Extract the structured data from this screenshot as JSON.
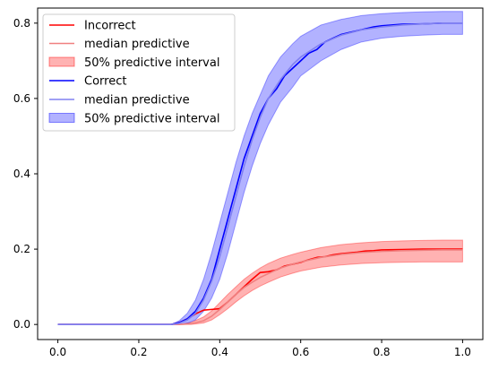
{
  "chart_data": {
    "type": "line",
    "xlim": [
      -0.05,
      1.05
    ],
    "ylim": [
      -0.04,
      0.84
    ],
    "x_ticks": [
      0.0,
      0.2,
      0.4,
      0.6,
      0.8,
      1.0
    ],
    "x_tick_labels": [
      "0.0",
      "0.2",
      "0.4",
      "0.6",
      "0.8",
      "1.0"
    ],
    "y_ticks": [
      0.0,
      0.2,
      0.4,
      0.6,
      0.8
    ],
    "y_tick_labels": [
      "0.0",
      "0.2",
      "0.4",
      "0.6",
      "0.8"
    ],
    "grid": false,
    "legend_position": "top-left",
    "series": [
      {
        "name": "Incorrect",
        "kind": "line",
        "color": "#ff0000",
        "x": [
          0.0,
          0.1,
          0.2,
          0.28,
          0.3,
          0.32,
          0.34,
          0.36,
          0.38,
          0.4,
          0.42,
          0.44,
          0.46,
          0.48,
          0.5,
          0.52,
          0.54,
          0.56,
          0.58,
          0.6,
          0.62,
          0.64,
          0.66,
          0.68,
          0.7,
          0.72,
          0.74,
          0.76,
          0.78,
          0.8,
          0.85,
          0.9,
          0.95,
          1.0
        ],
        "y": [
          0.0,
          0.0,
          0.0,
          0.0,
          0.005,
          0.015,
          0.028,
          0.038,
          0.04,
          0.042,
          0.06,
          0.08,
          0.1,
          0.12,
          0.138,
          0.14,
          0.145,
          0.155,
          0.16,
          0.165,
          0.172,
          0.178,
          0.18,
          0.185,
          0.188,
          0.19,
          0.192,
          0.195,
          0.196,
          0.198,
          0.199,
          0.2,
          0.2,
          0.2
        ]
      },
      {
        "name": "median predictive",
        "kind": "line",
        "color": "#f08080",
        "x": [
          0.0,
          0.1,
          0.2,
          0.3,
          0.33,
          0.36,
          0.38,
          0.4,
          0.42,
          0.44,
          0.46,
          0.48,
          0.5,
          0.52,
          0.55,
          0.58,
          0.6,
          0.65,
          0.7,
          0.75,
          0.8,
          0.85,
          0.9,
          0.95,
          1.0
        ],
        "y": [
          0.0,
          0.0,
          0.0,
          0.0,
          0.002,
          0.01,
          0.022,
          0.04,
          0.06,
          0.08,
          0.098,
          0.112,
          0.125,
          0.135,
          0.15,
          0.16,
          0.166,
          0.178,
          0.186,
          0.191,
          0.194,
          0.196,
          0.197,
          0.198,
          0.198
        ]
      },
      {
        "name": "50% predictive interval",
        "kind": "band",
        "color": "#ff0000",
        "x": [
          0.0,
          0.1,
          0.2,
          0.3,
          0.33,
          0.36,
          0.38,
          0.4,
          0.42,
          0.44,
          0.46,
          0.48,
          0.5,
          0.52,
          0.55,
          0.58,
          0.6,
          0.65,
          0.7,
          0.75,
          0.8,
          0.85,
          0.9,
          0.95,
          1.0
        ],
        "lower": [
          0.0,
          0.0,
          0.0,
          0.0,
          0.0,
          0.004,
          0.012,
          0.026,
          0.042,
          0.06,
          0.076,
          0.09,
          0.102,
          0.112,
          0.126,
          0.136,
          0.142,
          0.152,
          0.158,
          0.162,
          0.164,
          0.165,
          0.166,
          0.166,
          0.166
        ],
        "upper": [
          0.0,
          0.0,
          0.0,
          0.0,
          0.006,
          0.02,
          0.036,
          0.058,
          0.08,
          0.1,
          0.12,
          0.136,
          0.15,
          0.162,
          0.176,
          0.186,
          0.192,
          0.204,
          0.212,
          0.217,
          0.22,
          0.222,
          0.223,
          0.224,
          0.224
        ]
      },
      {
        "name": "Correct",
        "kind": "line",
        "color": "#0000ff",
        "x": [
          0.0,
          0.1,
          0.2,
          0.28,
          0.3,
          0.32,
          0.34,
          0.36,
          0.38,
          0.4,
          0.42,
          0.44,
          0.46,
          0.48,
          0.5,
          0.52,
          0.54,
          0.56,
          0.58,
          0.6,
          0.62,
          0.64,
          0.66,
          0.68,
          0.7,
          0.72,
          0.74,
          0.76,
          0.78,
          0.8,
          0.85,
          0.9,
          0.95,
          1.0
        ],
        "y": [
          0.0,
          0.0,
          0.0,
          0.0,
          0.005,
          0.015,
          0.035,
          0.07,
          0.12,
          0.2,
          0.28,
          0.36,
          0.44,
          0.5,
          0.56,
          0.6,
          0.625,
          0.66,
          0.68,
          0.7,
          0.72,
          0.73,
          0.75,
          0.76,
          0.77,
          0.775,
          0.78,
          0.785,
          0.79,
          0.793,
          0.797,
          0.798,
          0.8,
          0.8
        ]
      },
      {
        "name": "median predictive",
        "kind": "line",
        "color": "#8080f0",
        "x": [
          0.0,
          0.1,
          0.2,
          0.28,
          0.3,
          0.32,
          0.34,
          0.36,
          0.38,
          0.4,
          0.42,
          0.44,
          0.46,
          0.48,
          0.5,
          0.52,
          0.55,
          0.58,
          0.6,
          0.65,
          0.7,
          0.75,
          0.8,
          0.85,
          0.9,
          0.95,
          1.0
        ],
        "y": [
          0.0,
          0.0,
          0.0,
          0.0,
          0.003,
          0.012,
          0.03,
          0.065,
          0.115,
          0.18,
          0.26,
          0.34,
          0.42,
          0.49,
          0.55,
          0.6,
          0.65,
          0.69,
          0.71,
          0.745,
          0.768,
          0.782,
          0.79,
          0.795,
          0.798,
          0.8,
          0.8
        ]
      },
      {
        "name": "50% predictive interval",
        "kind": "band",
        "color": "#0000ff",
        "x": [
          0.0,
          0.1,
          0.2,
          0.28,
          0.3,
          0.32,
          0.34,
          0.36,
          0.38,
          0.4,
          0.42,
          0.44,
          0.46,
          0.48,
          0.5,
          0.52,
          0.55,
          0.58,
          0.6,
          0.65,
          0.7,
          0.75,
          0.8,
          0.85,
          0.9,
          0.95,
          1.0
        ],
        "lower": [
          0.0,
          0.0,
          0.0,
          0.0,
          0.0,
          0.003,
          0.012,
          0.035,
          0.07,
          0.12,
          0.19,
          0.27,
          0.35,
          0.42,
          0.48,
          0.53,
          0.59,
          0.63,
          0.66,
          0.7,
          0.73,
          0.75,
          0.76,
          0.765,
          0.768,
          0.77,
          0.77
        ],
        "upper": [
          0.0,
          0.0,
          0.0,
          0.0,
          0.01,
          0.03,
          0.065,
          0.12,
          0.19,
          0.27,
          0.35,
          0.43,
          0.5,
          0.56,
          0.61,
          0.66,
          0.71,
          0.745,
          0.765,
          0.795,
          0.81,
          0.82,
          0.825,
          0.828,
          0.83,
          0.831,
          0.831
        ]
      }
    ]
  }
}
